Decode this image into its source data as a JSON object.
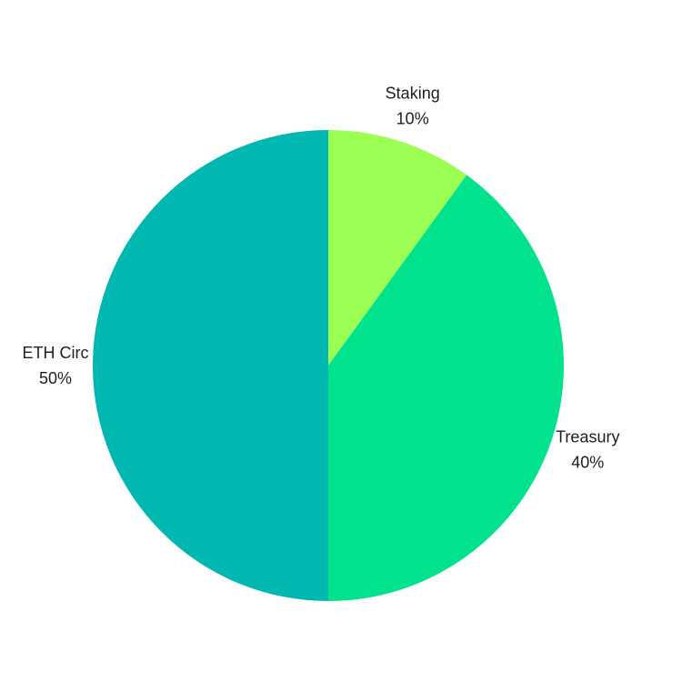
{
  "chart_data": {
    "type": "pie",
    "title": "",
    "start_angle_deg": 0,
    "direction": "clockwise",
    "slices": [
      {
        "label": "Staking",
        "value": 10,
        "value_label": "10%",
        "color": "#9BFF54"
      },
      {
        "label": "Treasury",
        "value": 40,
        "value_label": "40%",
        "color": "#00E38C"
      },
      {
        "label": "ETH Circ",
        "value": 50,
        "value_label": "50%",
        "color": "#00B8B0"
      }
    ]
  }
}
